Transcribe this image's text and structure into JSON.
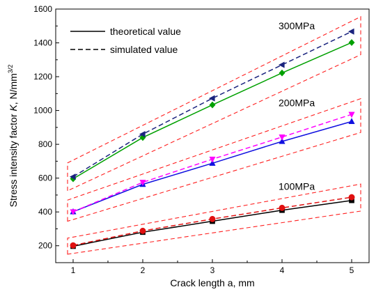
{
  "chart_data": {
    "type": "line",
    "xlabel": "Crack length a, mm",
    "ylabel": "Stress intensity factor ",
    "ylabel_k": "K",
    "ylabel_unit": ", N/mm",
    "ylabel_exp": "3/2",
    "xlim": [
      0.75,
      5.25
    ],
    "ylim": [
      100,
      1600
    ],
    "x_ticks": [
      1,
      2,
      3,
      4,
      5
    ],
    "y_ticks": [
      200,
      400,
      600,
      800,
      1000,
      1200,
      1400,
      1600
    ],
    "grid": false,
    "legend": {
      "placement": "top-left",
      "entries": [
        {
          "label": "theoretical value",
          "style": "solid"
        },
        {
          "label": "simulated value",
          "style": "dashed"
        }
      ]
    },
    "group_labels": [
      {
        "text": "300MPa",
        "x": 3.95,
        "y": 1480
      },
      {
        "text": "200MPa",
        "x": 3.95,
        "y": 1025
      },
      {
        "text": "100MPa",
        "x": 3.95,
        "y": 530
      }
    ],
    "series": [
      {
        "id": "t300",
        "stress": "300MPa",
        "style": "solid",
        "color": "#00a000",
        "marker": "diamond",
        "x": [
          1,
          2,
          3,
          4,
          5
        ],
        "y": [
          596,
          840,
          1033,
          1222,
          1402
        ]
      },
      {
        "id": "s300",
        "stress": "300MPa",
        "style": "dashed",
        "color": "#1a237e",
        "marker": "triangle-left",
        "x": [
          1,
          2,
          3,
          4,
          5
        ],
        "y": [
          608,
          860,
          1072,
          1270,
          1467
        ]
      },
      {
        "id": "t200",
        "stress": "200MPa",
        "style": "solid",
        "color": "#1010e0",
        "marker": "triangle-up",
        "x": [
          1,
          2,
          3,
          4,
          5
        ],
        "y": [
          401,
          563,
          688,
          817,
          935
        ]
      },
      {
        "id": "s200",
        "stress": "200MPa",
        "style": "dashed",
        "color": "#ff00ff",
        "marker": "triangle-down",
        "x": [
          1,
          2,
          3,
          4,
          5
        ],
        "y": [
          401,
          575,
          712,
          843,
          977
        ]
      },
      {
        "id": "t100",
        "stress": "100MPa",
        "style": "solid",
        "color": "#000000",
        "marker": "square",
        "x": [
          1,
          2,
          3,
          4,
          5
        ],
        "y": [
          197,
          280,
          345,
          410,
          468
        ]
      },
      {
        "id": "s100",
        "stress": "100MPa",
        "style": "dashed",
        "color": "#e01010",
        "marker": "circle",
        "x": [
          1,
          2,
          3,
          4,
          5
        ],
        "y": [
          202,
          288,
          358,
          424,
          487
        ]
      }
    ],
    "envelopes": [
      {
        "stress": "300MPa",
        "color": "#ff2020",
        "points": [
          [
            0.92,
            525
          ],
          [
            0.92,
            690
          ],
          [
            5.13,
            1555
          ],
          [
            5.13,
            1330
          ]
        ]
      },
      {
        "stress": "200MPa",
        "color": "#ff2020",
        "points": [
          [
            0.92,
            345
          ],
          [
            0.92,
            470
          ],
          [
            5.13,
            1070
          ],
          [
            5.13,
            870
          ]
        ]
      },
      {
        "stress": "100MPa",
        "color": "#ff2020",
        "points": [
          [
            0.92,
            150
          ],
          [
            0.92,
            245
          ],
          [
            5.13,
            565
          ],
          [
            5.13,
            405
          ]
        ]
      }
    ]
  }
}
